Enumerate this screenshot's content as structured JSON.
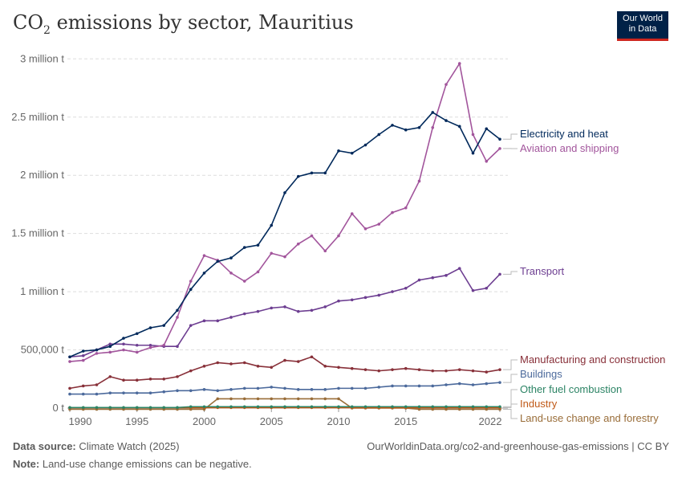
{
  "header": {
    "title_main": "CO",
    "title_sub": "2",
    "title_rest": " emissions by sector, Mauritius",
    "logo_line1": "Our World",
    "logo_line2": "in Data"
  },
  "footer": {
    "source_label": "Data source:",
    "source": "Climate Watch (2025)",
    "url": "OurWorldinData.org/co2-and-greenhouse-gas-emissions | CC BY",
    "note_label": "Note:",
    "note": "Land-use change emissions can be negative."
  },
  "chart_data": {
    "type": "line",
    "title": "CO₂ emissions by sector, Mauritius",
    "x": [
      1990,
      1991,
      1992,
      1993,
      1994,
      1995,
      1996,
      1997,
      1998,
      1999,
      2000,
      2001,
      2002,
      2003,
      2004,
      2005,
      2006,
      2007,
      2008,
      2009,
      2010,
      2011,
      2012,
      2013,
      2014,
      2015,
      2016,
      2017,
      2018,
      2019,
      2020,
      2021,
      2022
    ],
    "xticks": [
      1990,
      1995,
      2000,
      2005,
      2010,
      2015,
      2022
    ],
    "yticks": [
      {
        "v": 0,
        "label": "0 t"
      },
      {
        "v": 500000,
        "label": "500,000 t"
      },
      {
        "v": 1000000,
        "label": "1 million t"
      },
      {
        "v": 1500000,
        "label": "1.5 million t"
      },
      {
        "v": 2000000,
        "label": "2 million t"
      },
      {
        "v": 2500000,
        "label": "2.5 million t"
      },
      {
        "v": 3000000,
        "label": "3 million t"
      }
    ],
    "ylim": [
      0,
      3000000
    ],
    "grid": "horizontal dashed",
    "legend": "right, line-end labels",
    "unit_scale": 1000000,
    "series": [
      {
        "name": "Electricity and heat",
        "color": "#00295b",
        "values": [
          0.44,
          0.49,
          0.5,
          0.53,
          0.6,
          0.64,
          0.69,
          0.71,
          0.84,
          1.02,
          1.16,
          1.26,
          1.29,
          1.38,
          1.4,
          1.57,
          1.85,
          1.99,
          2.02,
          2.02,
          2.21,
          2.19,
          2.26,
          2.35,
          2.43,
          2.39,
          2.41,
          2.54,
          2.47,
          2.42,
          2.19,
          2.4,
          2.31
        ]
      },
      {
        "name": "Aviation and shipping",
        "color": "#a2559c",
        "values": [
          0.4,
          0.41,
          0.47,
          0.48,
          0.5,
          0.48,
          0.52,
          0.54,
          0.78,
          1.09,
          1.31,
          1.27,
          1.16,
          1.09,
          1.17,
          1.33,
          1.3,
          1.41,
          1.48,
          1.35,
          1.48,
          1.67,
          1.54,
          1.58,
          1.68,
          1.72,
          1.95,
          2.41,
          2.78,
          2.96,
          2.35,
          2.12,
          2.23
        ]
      },
      {
        "name": "Transport",
        "color": "#6d3e91",
        "values": [
          0.44,
          0.45,
          0.5,
          0.55,
          0.55,
          0.54,
          0.54,
          0.53,
          0.53,
          0.71,
          0.75,
          0.75,
          0.78,
          0.81,
          0.83,
          0.86,
          0.87,
          0.83,
          0.84,
          0.87,
          0.92,
          0.93,
          0.95,
          0.97,
          1.0,
          1.03,
          1.1,
          1.12,
          1.14,
          1.2,
          1.01,
          1.03,
          1.15
        ]
      },
      {
        "name": "Manufacturing and construction",
        "color": "#883039",
        "values": [
          0.17,
          0.19,
          0.2,
          0.27,
          0.24,
          0.24,
          0.25,
          0.25,
          0.27,
          0.32,
          0.36,
          0.39,
          0.38,
          0.39,
          0.36,
          0.35,
          0.41,
          0.4,
          0.44,
          0.36,
          0.35,
          0.34,
          0.33,
          0.32,
          0.33,
          0.34,
          0.33,
          0.32,
          0.32,
          0.33,
          0.32,
          0.31,
          0.33
        ]
      },
      {
        "name": "Buildings",
        "color": "#4c6a9c",
        "values": [
          0.12,
          0.12,
          0.12,
          0.13,
          0.13,
          0.13,
          0.13,
          0.14,
          0.15,
          0.15,
          0.16,
          0.15,
          0.16,
          0.17,
          0.17,
          0.18,
          0.17,
          0.16,
          0.16,
          0.16,
          0.17,
          0.17,
          0.17,
          0.18,
          0.19,
          0.19,
          0.19,
          0.19,
          0.2,
          0.21,
          0.2,
          0.21,
          0.22
        ]
      },
      {
        "name": "Other fuel combustion",
        "color": "#2c8465",
        "values": [
          0.005,
          0.005,
          0.005,
          0.005,
          0.005,
          0.005,
          0.005,
          0.005,
          0.005,
          0.012,
          0.012,
          0.012,
          0.012,
          0.012,
          0.012,
          0.012,
          0.012,
          0.012,
          0.012,
          0.012,
          0.012,
          0.012,
          0.012,
          0.012,
          0.012,
          0.012,
          0.012,
          0.012,
          0.012,
          0.012,
          0.012,
          0.012,
          0.012
        ]
      },
      {
        "name": "Industry",
        "color": "#c05917",
        "values": [
          0.004,
          0.004,
          0.004,
          0.004,
          0.004,
          0.004,
          0.004,
          0.004,
          0.004,
          0.004,
          0.004,
          0.004,
          0.004,
          0.004,
          0.004,
          0.004,
          0.004,
          0.004,
          0.004,
          0.004,
          0.004,
          0.004,
          0.004,
          0.004,
          0.004,
          0.004,
          0.004,
          0.004,
          0.004,
          0.004,
          0.004,
          0.004,
          0.004
        ]
      },
      {
        "name": "Land-use change and forestry",
        "color": "#996d39",
        "values": [
          -0.01,
          -0.01,
          -0.01,
          -0.01,
          -0.01,
          -0.01,
          -0.01,
          -0.01,
          -0.01,
          -0.01,
          -0.01,
          0.08,
          0.08,
          0.08,
          0.08,
          0.08,
          0.08,
          0.08,
          0.08,
          0.08,
          0.08,
          0.0,
          0.0,
          0.0,
          0.0,
          0.0,
          -0.01,
          -0.01,
          -0.01,
          -0.01,
          -0.01,
          -0.01,
          -0.01
        ]
      }
    ]
  }
}
